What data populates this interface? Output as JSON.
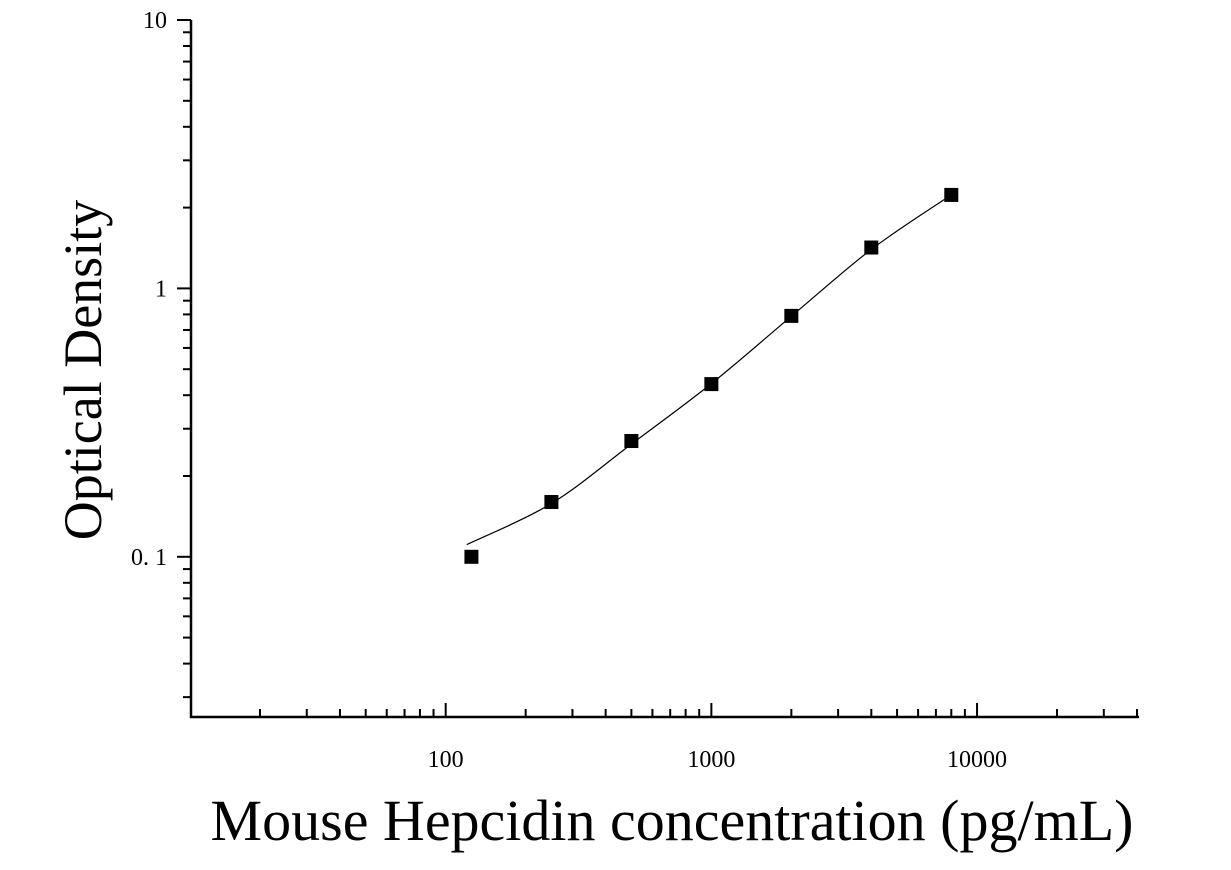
{
  "chart_data": {
    "type": "scatter",
    "xlabel": "Mouse Hepcidin concentration (pg/mL)",
    "ylabel": "Optical Density",
    "x_scale": "log",
    "y_scale": "log",
    "xlim": [
      11,
      40000
    ],
    "ylim": [
      0.0253,
      10
    ],
    "x_ticks": [
      {
        "value": 100,
        "label": "100"
      },
      {
        "value": 1000,
        "label": "1000"
      },
      {
        "value": 10000,
        "label": "10000"
      }
    ],
    "y_ticks": [
      {
        "value": 0.1,
        "label": "0. 1"
      },
      {
        "value": 1,
        "label": "1"
      },
      {
        "value": 10,
        "label": "10"
      }
    ],
    "grid": false,
    "series": [
      {
        "marker": "square",
        "color": "#000000",
        "x": [
          125,
          250,
          500,
          1000,
          2000,
          4000,
          8000
        ],
        "y": [
          0.1,
          0.16,
          0.27,
          0.44,
          0.79,
          1.42,
          2.23
        ]
      }
    ],
    "fit_curve": {
      "color": "#000000",
      "x": [
        120,
        250,
        500,
        1000,
        2000,
        4000,
        8000
      ],
      "y": [
        0.111,
        0.158,
        0.263,
        0.442,
        0.787,
        1.397,
        2.23
      ]
    }
  }
}
